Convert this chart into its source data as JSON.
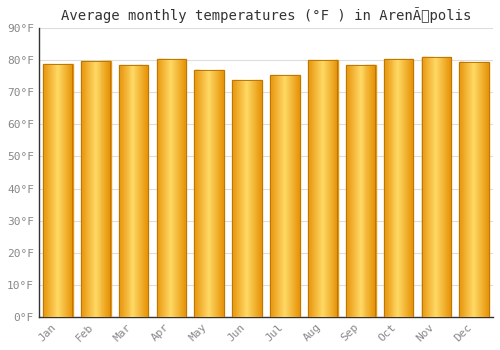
{
  "title": "Average monthly temperatures (°F ) in ArenÃpolis",
  "months": [
    "Jan",
    "Feb",
    "Mar",
    "Apr",
    "May",
    "Jun",
    "Jul",
    "Aug",
    "Sep",
    "Oct",
    "Nov",
    "Dec"
  ],
  "values": [
    79.0,
    79.8,
    78.5,
    80.5,
    77.0,
    74.0,
    75.5,
    80.0,
    78.5,
    80.5,
    81.0,
    79.5
  ],
  "ylim": [
    0,
    90
  ],
  "yticks": [
    0,
    10,
    20,
    30,
    40,
    50,
    60,
    70,
    80,
    90
  ],
  "ytick_labels": [
    "0°F",
    "10°F",
    "20°F",
    "30°F",
    "40°F",
    "50°F",
    "60°F",
    "70°F",
    "80°F",
    "90°F"
  ],
  "bar_color_center": "#FFD966",
  "bar_color_edge": "#E8940A",
  "bar_edge_color": "#B8780A",
  "background_color": "#FFFFFF",
  "grid_color": "#DDDDDD",
  "title_fontsize": 10,
  "tick_fontsize": 8,
  "bar_width": 0.78
}
